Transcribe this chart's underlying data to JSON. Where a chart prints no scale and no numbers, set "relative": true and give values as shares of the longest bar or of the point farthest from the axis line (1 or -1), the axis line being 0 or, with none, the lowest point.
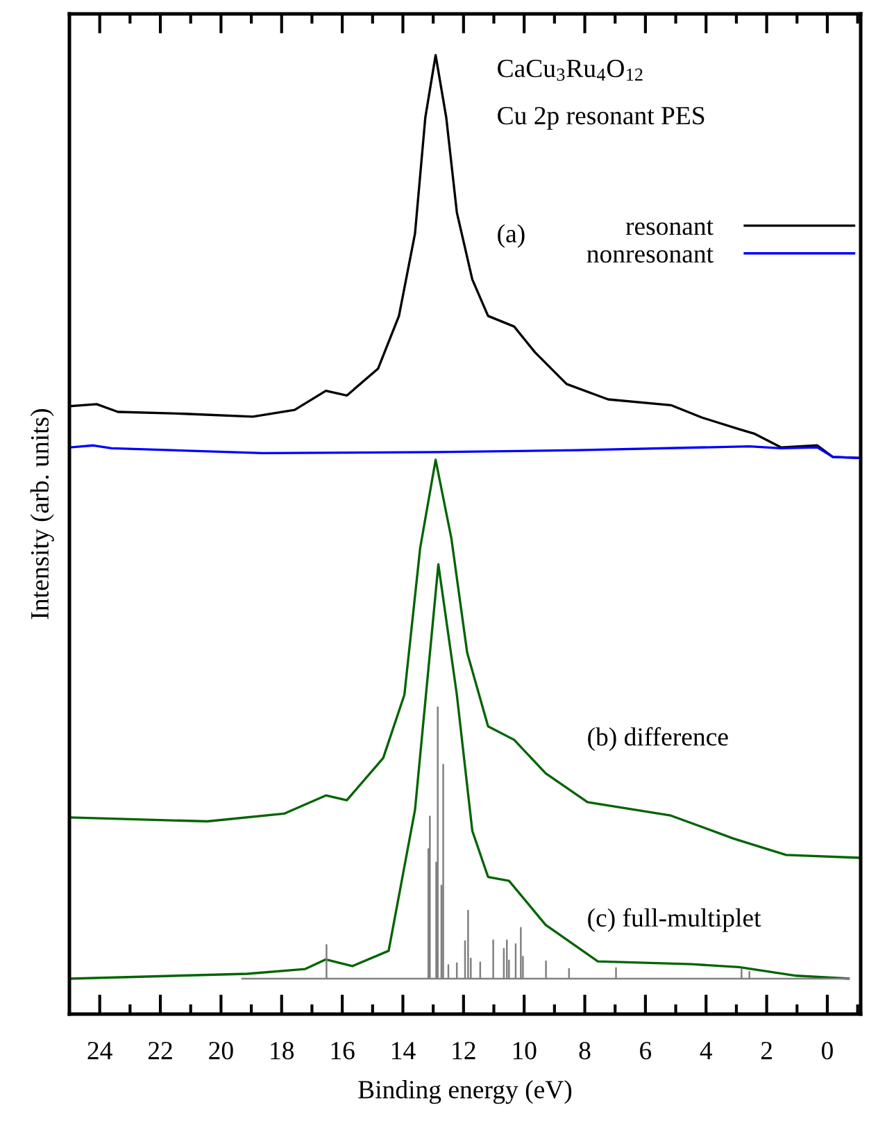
{
  "chart_data": {
    "type": "line",
    "relative": true,
    "xlabel": "Binding energy (eV)",
    "ylabel": "Intensity (arb. units)",
    "xlim": [
      25,
      -1.1
    ],
    "xticks": [
      24,
      {
        "value": 23,
        "label": null
      },
      22,
      {
        "value": 21,
        "label": null
      },
      20,
      {
        "value": 19,
        "label": null
      },
      18,
      {
        "value": 17,
        "label": null
      },
      16,
      {
        "value": 15,
        "label": null
      },
      14,
      {
        "value": 13,
        "label": null
      },
      12,
      {
        "value": 11,
        "label": null
      },
      10,
      {
        "value": 9,
        "label": null
      },
      8,
      {
        "value": 7,
        "label": null
      },
      6,
      {
        "value": 5,
        "label": null
      },
      4,
      {
        "value": 3,
        "label": null
      },
      2,
      {
        "value": 1,
        "label": null
      },
      0,
      {
        "value": -1,
        "label": null
      }
    ],
    "tick_labels": "x",
    "grid": false,
    "legend": "top right",
    "marker": "none",
    "line_style": "solid",
    "annotations": [
      "CaCu$_{3}$Ru$_{4}$O$_{12}$",
      "Cu 2p resonant PES",
      "(a)",
      "(b) difference",
      "(c) full-multiplet"
    ],
    "series": [
      {
        "name": "resonant",
        "color": "#000000",
        "x": [
          24.96,
          24.1,
          23.4,
          21.2,
          18.95,
          17.57,
          16.54,
          15.85,
          14.82,
          14.13,
          13.6,
          13.26,
          12.92,
          12.57,
          12.22,
          11.71,
          11.19,
          10.33,
          9.64,
          8.6,
          7.23,
          5.16,
          4.13,
          2.91,
          2.39,
          1.53,
          0.33,
          -0.18,
          -1.05
        ],
        "values": [
          0.634,
          0.636,
          0.628,
          0.626,
          0.623,
          0.63,
          0.65,
          0.645,
          0.673,
          0.728,
          0.814,
          0.935,
          1.0,
          0.935,
          0.836,
          0.766,
          0.728,
          0.717,
          0.69,
          0.657,
          0.641,
          0.635,
          0.622,
          0.61,
          0.605,
          0.591,
          0.593,
          0.581,
          0.58
        ]
      },
      {
        "name": "nonresonant",
        "color": "#0000ff",
        "x": [
          24.96,
          24.21,
          23.61,
          18.61,
          12.92,
          8.26,
          2.57,
          1.53,
          0.33,
          -0.18,
          -1.05
        ],
        "values": [
          0.591,
          0.593,
          0.59,
          0.585,
          0.586,
          0.588,
          0.592,
          0.59,
          0.591,
          0.581,
          0.58
        ]
      },
      {
        "color": "#006400",
        "x": [
          24.96,
          20.45,
          17.92,
          16.54,
          15.85,
          14.65,
          13.95,
          13.43,
          12.92,
          12.4,
          11.88,
          11.19,
          10.33,
          9.29,
          7.91,
          5.16,
          3.09,
          1.36,
          -1.05
        ],
        "values": [
          0.205,
          0.201,
          0.209,
          0.228,
          0.223,
          0.267,
          0.333,
          0.486,
          0.578,
          0.496,
          0.377,
          0.3,
          0.286,
          0.251,
          0.221,
          0.207,
          0.183,
          0.166,
          0.163
        ]
      },
      {
        "color": "#006400",
        "x": [
          24.96,
          19.14,
          17.22,
          16.54,
          15.67,
          14.47,
          13.6,
          12.83,
          12.22,
          11.71,
          11.19,
          10.5,
          9.29,
          7.57,
          4.47,
          2.91,
          1.02,
          -0.7
        ],
        "values": [
          0.037,
          0.042,
          0.047,
          0.057,
          0.05,
          0.066,
          0.213,
          0.469,
          0.333,
          0.191,
          0.143,
          0.139,
          0.093,
          0.055,
          0.052,
          0.049,
          0.04,
          0.037
        ]
      },
      {
        "color": "#808080",
        "x": [
          19.3,
          16.52,
          16.52,
          16.52,
          13.16,
          13.16,
          13.16,
          13.11,
          13.11,
          13.11,
          12.9,
          12.9,
          12.9,
          12.85,
          12.85,
          12.85,
          12.73,
          12.73,
          12.73,
          12.67,
          12.67,
          12.67,
          12.5,
          12.5,
          12.5,
          12.22,
          12.22,
          12.22,
          11.95,
          11.95,
          11.95,
          11.85,
          11.85,
          11.85,
          11.76,
          11.76,
          11.76,
          11.45,
          11.45,
          11.45,
          11.02,
          11.02,
          11.02,
          10.67,
          10.67,
          10.67,
          10.57,
          10.57,
          10.57,
          10.5,
          10.5,
          10.5,
          10.28,
          10.28,
          10.28,
          10.11,
          10.11,
          10.11,
          10.04,
          10.04,
          10.04,
          9.28,
          9.28,
          9.28,
          8.52,
          8.52,
          8.52,
          6.97,
          6.97,
          6.97,
          2.83,
          2.83,
          2.83,
          2.57,
          2.57,
          2.57,
          -0.71
        ],
        "values": [
          0.037,
          0.037,
          0.072,
          0.037,
          0.037,
          0.172,
          0.037,
          0.037,
          0.206,
          0.037,
          0.037,
          0.158,
          0.037,
          0.037,
          0.32,
          0.037,
          0.037,
          0.134,
          0.037,
          0.037,
          0.26,
          0.037,
          0.037,
          0.051,
          0.037,
          0.037,
          0.053,
          0.037,
          0.037,
          0.076,
          0.037,
          0.037,
          0.108,
          0.037,
          0.037,
          0.058,
          0.037,
          0.037,
          0.054,
          0.037,
          0.037,
          0.077,
          0.037,
          0.037,
          0.068,
          0.037,
          0.037,
          0.077,
          0.037,
          0.037,
          0.056,
          0.037,
          0.037,
          0.073,
          0.037,
          0.037,
          0.09,
          0.037,
          0.037,
          0.06,
          0.037,
          0.037,
          0.055,
          0.037,
          0.037,
          0.047,
          0.037,
          0.037,
          0.048,
          0.037,
          0.037,
          0.047,
          0.037,
          0.037,
          0.044,
          0.037,
          0.037
        ]
      }
    ]
  }
}
